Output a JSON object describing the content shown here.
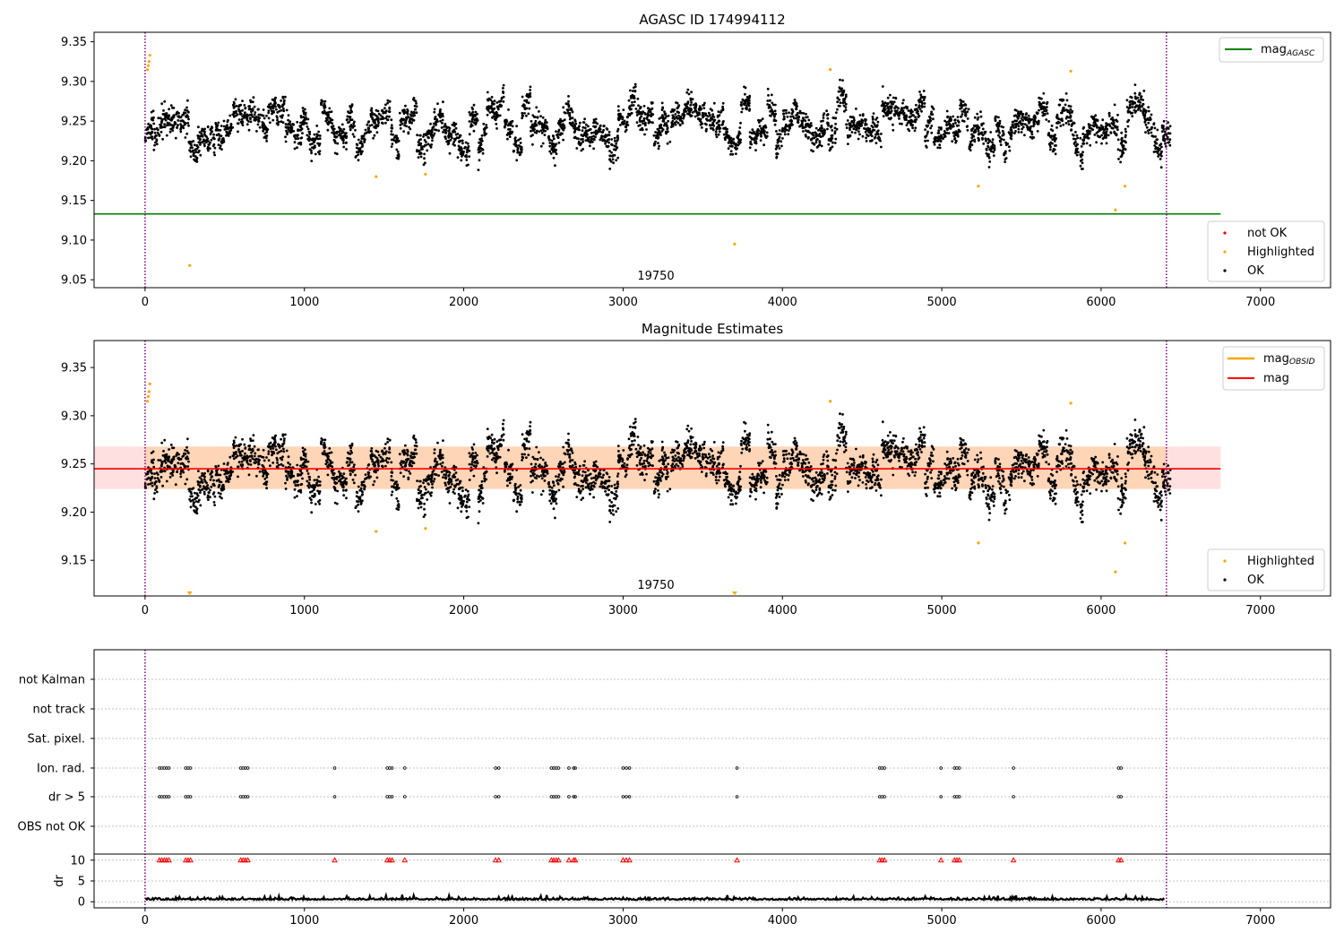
{
  "chart_data": [
    {
      "type": "scatter",
      "title": "AGASC ID 174994112",
      "xlim": [
        -320,
        7440
      ],
      "ylim": [
        9.04,
        9.362
      ],
      "xticks": [
        0,
        1000,
        2000,
        3000,
        4000,
        5000,
        6000,
        7000
      ],
      "yticks": [
        9.05,
        9.1,
        9.15,
        9.2,
        9.25,
        9.3,
        9.35
      ],
      "obsid_label": "19750",
      "obsid_boundaries": [
        0,
        6410
      ],
      "mag_agasc": 9.133,
      "mag_agasc_xrange": [
        -320,
        6750
      ],
      "legend_lines": [
        {
          "label": "mag",
          "subscript": "AGASC",
          "color": "#008000"
        }
      ],
      "legend_points": [
        {
          "label": "not OK",
          "color": "#ff0000"
        },
        {
          "label": "Highlighted",
          "color": "#ffa500"
        },
        {
          "label": "OK",
          "color": "#000000"
        }
      ],
      "series": [
        {
          "name": "OK",
          "color": "#000000",
          "x_range": [
            0,
            6400
          ],
          "y_center": 9.245,
          "y_spread": 0.022
        },
        {
          "name": "Highlighted",
          "color": "#ffa500",
          "x": [
            15,
            20,
            25,
            30,
            280,
            1450,
            1760,
            3700,
            4300,
            5230,
            5810,
            6090,
            6150
          ],
          "y": [
            9.315,
            9.32,
            9.325,
            9.333,
            9.068,
            9.18,
            9.183,
            9.095,
            9.315,
            9.168,
            9.313,
            9.138,
            9.168
          ]
        }
      ]
    },
    {
      "type": "scatter",
      "title": "Magnitude Estimates",
      "xlim": [
        -320,
        7440
      ],
      "ylim": [
        9.113,
        9.378
      ],
      "xticks": [
        0,
        1000,
        2000,
        3000,
        4000,
        5000,
        6000,
        7000
      ],
      "yticks": [
        9.15,
        9.2,
        9.25,
        9.3,
        9.35
      ],
      "obsid_label": "19750",
      "obsid_boundaries": [
        0,
        6410
      ],
      "mag": 9.245,
      "mag_band": [
        9.224,
        9.268
      ],
      "mag_obsid_band": [
        9.224,
        9.268
      ],
      "band_xrange": [
        -320,
        6750
      ],
      "legend_lines": [
        {
          "label": "mag",
          "subscript": "OBSID",
          "color": "#ffa500"
        },
        {
          "label": "mag",
          "subscript": "",
          "color": "#ff0000"
        }
      ],
      "legend_points": [
        {
          "label": "Highlighted",
          "color": "#ffa500"
        },
        {
          "label": "OK",
          "color": "#000000"
        }
      ],
      "series": [
        {
          "name": "OK",
          "color": "#000000",
          "x_range": [
            0,
            6400
          ],
          "y_center": 9.245,
          "y_spread": 0.022
        },
        {
          "name": "Highlighted",
          "color": "#ffa500",
          "x": [
            15,
            20,
            25,
            30,
            1450,
            1760,
            4300,
            5230,
            5810,
            6090,
            6150
          ],
          "y": [
            9.315,
            9.32,
            9.325,
            9.333,
            9.18,
            9.183,
            9.315,
            9.168,
            9.313,
            9.138,
            9.168
          ]
        },
        {
          "name": "Highlighted below range",
          "color": "#ffa500",
          "x": [
            280,
            3700
          ]
        }
      ]
    },
    {
      "type": "scatter",
      "xlim": [
        -320,
        7440
      ],
      "xticks": [
        0,
        1000,
        2000,
        3000,
        4000,
        5000,
        6000,
        7000
      ],
      "obsid_boundaries": [
        0,
        6410
      ],
      "flag_labels": [
        "not Kalman",
        "not track",
        "Sat. pixel.",
        "Ion. rad.",
        "dr > 5",
        "OBS not OK"
      ],
      "flag_events_x": [
        90,
        105,
        120,
        135,
        150,
        255,
        270,
        285,
        600,
        615,
        630,
        645,
        1190,
        1520,
        1535,
        1550,
        1630,
        2200,
        2220,
        2550,
        2565,
        2580,
        2595,
        2660,
        2690,
        2700,
        3000,
        3020,
        3040,
        3715,
        4610,
        4625,
        4640,
        4995,
        5080,
        5095,
        5110,
        5450,
        6110,
        6125
      ],
      "dr_ylabel": "dr",
      "dr_yticks": [
        0,
        5,
        10
      ],
      "dr_ylim": [
        -0.6,
        10.6
      ],
      "dr_capped_value": 10
    }
  ]
}
